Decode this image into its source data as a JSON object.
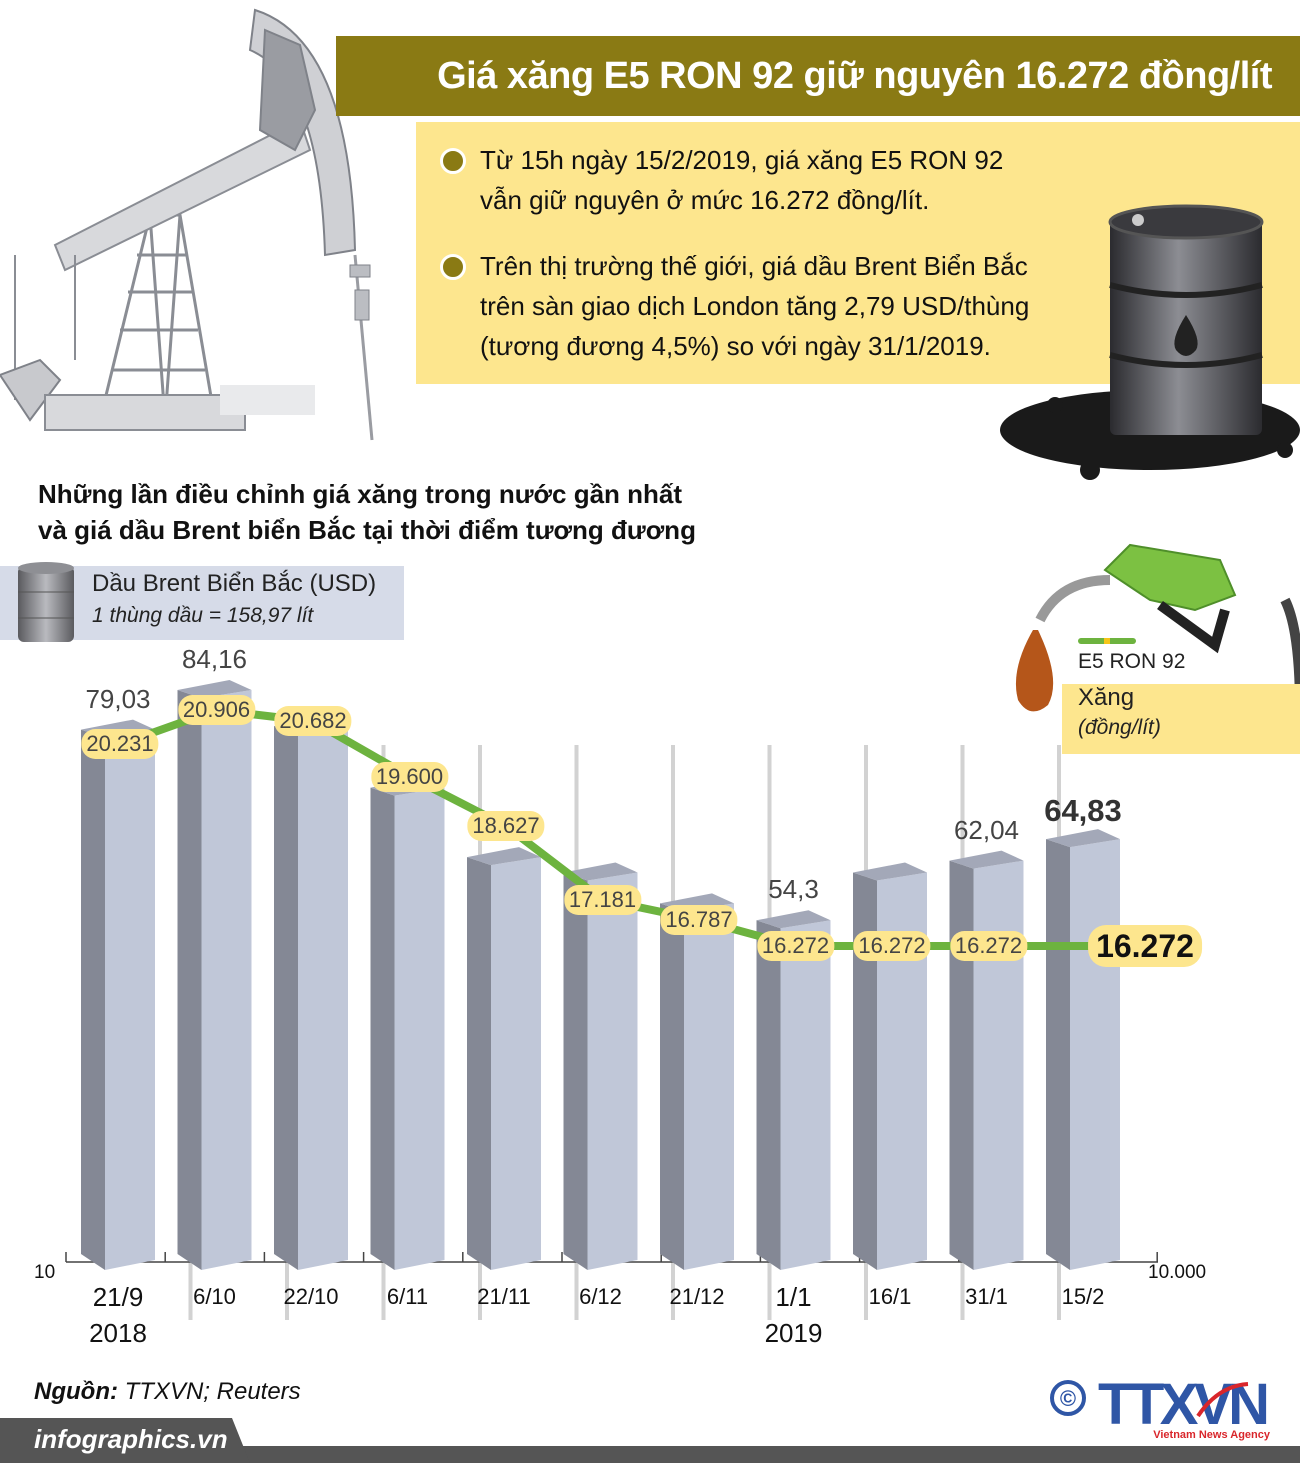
{
  "header": {
    "title": "Giá xăng E5 RON 92 giữ nguyên 16.272 đồng/lít"
  },
  "info": {
    "bullets": [
      {
        "line1": "Từ 15h ngày 15/2/2019, giá xăng E5 RON 92",
        "line2": "vẫn giữ nguyên ở mức 16.272 đồng/lít.",
        "line3": ""
      },
      {
        "line1": "Trên thị trường thế giới, giá dầu Brent Biển Bắc",
        "line2": "trên sàn giao dịch London tăng 2,79 USD/thùng",
        "line3": "(tương đương 4,5%) so với ngày 31/1/2019."
      }
    ]
  },
  "subtitle": {
    "line1": "Những lần điều chỉnh giá xăng trong nước gần nhất",
    "line2": "và giá dầu Brent biển Bắc tại thời điểm tương đương"
  },
  "legend": {
    "brent_label": "Dầu Brent Biển Bắc (USD)",
    "brent_note": "1 thùng dầu = 158,97 lít",
    "ron_label": "E5 RON 92",
    "xang_label": "Xăng",
    "xang_unit": "(đồng/lít)"
  },
  "axis": {
    "left_base": "10",
    "right_base": "10.000"
  },
  "chart_data": {
    "type": "bar",
    "title": "Những lần điều chỉnh giá xăng trong nước gần nhất và giá dầu Brent biển Bắc tại thời điểm tương đương",
    "categories": [
      "21/9/2018",
      "6/10",
      "22/10",
      "6/11",
      "21/11",
      "6/12",
      "21/12",
      "1/1/2019",
      "16/1",
      "31/1",
      "15/2"
    ],
    "category_labels": [
      {
        "top": "21/9",
        "bottom": "2018"
      },
      {
        "top": "6/10",
        "bottom": ""
      },
      {
        "top": "22/10",
        "bottom": ""
      },
      {
        "top": "6/11",
        "bottom": ""
      },
      {
        "top": "21/11",
        "bottom": ""
      },
      {
        "top": "6/12",
        "bottom": ""
      },
      {
        "top": "21/12",
        "bottom": ""
      },
      {
        "top": "1/1",
        "bottom": "2019"
      },
      {
        "top": "16/1",
        "bottom": ""
      },
      {
        "top": "31/1",
        "bottom": ""
      },
      {
        "top": "15/2",
        "bottom": ""
      }
    ],
    "series": [
      {
        "name": "Dầu Brent Biển Bắc (USD)",
        "type": "bar",
        "values": [
          79.03,
          84.16,
          79.5,
          71.5,
          62.5,
          60.5,
          56.5,
          54.3,
          60.5,
          62.04,
          64.83
        ],
        "labels": [
          "79,03",
          "84,16",
          "",
          "",
          "",
          "",
          "",
          "54,3",
          "",
          "62,04",
          "64,83"
        ],
        "color": "#c0c7d8"
      },
      {
        "name": "Xăng E5 RON 92 (đồng/lít)",
        "type": "line",
        "values": [
          20231,
          20906,
          20682,
          19600,
          18627,
          17181,
          16787,
          16272,
          16272,
          16272,
          16272
        ],
        "labels": [
          "20.231",
          "20.906",
          "20.682",
          "19.600",
          "18.627",
          "17.181",
          "16.787",
          "16.272",
          "16.272",
          "16.272",
          "16.272"
        ],
        "color": "#6db33f"
      }
    ],
    "xlabel": "",
    "ylabel_left": "USD",
    "ylabel_right": "đồng/lít",
    "y_left_base": 10,
    "y_right_base": 10000,
    "grid": false,
    "legend_position": "top"
  },
  "footer": {
    "source_label": "Nguồn:",
    "source_value": " TTXVN; Reuters",
    "site": "infographics.vn",
    "logo_text": "TTXVN",
    "logo_sub": "Vietnam News Agency",
    "copyright": "©"
  },
  "colors": {
    "title_bg": "#8a7a14",
    "info_bg": "#fde68e",
    "bar_front": "#c0c7d8",
    "bar_side": "#848895",
    "bar_top": "#a3a8b8",
    "line": "#6db33f",
    "legend_bg": "#d6dbe8",
    "footer": "#555555",
    "logo_blue": "#2f56a6",
    "logo_red": "#d9262b"
  }
}
